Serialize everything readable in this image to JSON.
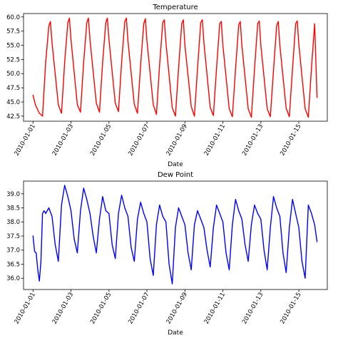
{
  "chart_data": [
    {
      "type": "line",
      "title": "Temperature",
      "xlabel": "Date",
      "ylabel": "",
      "xlim": [
        "2009-12-31T12:00",
        "2010-01-16T12:00"
      ],
      "ylim": [
        41.6,
        60.6
      ],
      "yticks": [
        42.5,
        45.0,
        47.5,
        50.0,
        52.5,
        55.0,
        57.5,
        60.0
      ],
      "ytick_labels": [
        "42.5",
        "45.0",
        "47.5",
        "50.0",
        "52.5",
        "55.0",
        "57.5",
        "60.0"
      ],
      "xtick_labels": [
        "2010-01-01",
        "2010-01-03",
        "2010-01-05",
        "2010-01-07",
        "2010-01-09",
        "2010-01-11",
        "2010-01-13",
        "2010-01-15"
      ],
      "grid": false,
      "series": [
        {
          "color": "#ff0000",
          "x": [
            "2010-01-01T00:00",
            "2010-01-01T03:00",
            "2010-01-01T08:00",
            "2010-01-01T12:00",
            "2010-01-01T16:00",
            "2010-01-01T20:00",
            "2010-01-01T22:00",
            "2010-01-02T00:00",
            "2010-01-02T08:00",
            "2010-01-02T12:00",
            "2010-01-02T16:00",
            "2010-01-02T20:00",
            "2010-01-02T22:00",
            "2010-01-03T00:00",
            "2010-01-03T08:00",
            "2010-01-03T12:00",
            "2010-01-03T16:00",
            "2010-01-03T20:00",
            "2010-01-03T22:00",
            "2010-01-04T00:00",
            "2010-01-04T08:00",
            "2010-01-04T12:00",
            "2010-01-04T16:00",
            "2010-01-04T20:00",
            "2010-01-04T22:00",
            "2010-01-05T00:00",
            "2010-01-05T08:00",
            "2010-01-05T12:00",
            "2010-01-05T16:00",
            "2010-01-05T20:00",
            "2010-01-05T22:00",
            "2010-01-06T00:00",
            "2010-01-06T08:00",
            "2010-01-06T12:00",
            "2010-01-06T16:00",
            "2010-01-06T20:00",
            "2010-01-06T22:00",
            "2010-01-07T00:00",
            "2010-01-07T08:00",
            "2010-01-07T12:00",
            "2010-01-07T16:00",
            "2010-01-07T20:00",
            "2010-01-07T22:00",
            "2010-01-08T00:00",
            "2010-01-08T08:00",
            "2010-01-08T12:00",
            "2010-01-08T16:00",
            "2010-01-08T20:00",
            "2010-01-08T22:00",
            "2010-01-09T00:00",
            "2010-01-09T08:00",
            "2010-01-09T12:00",
            "2010-01-09T16:00",
            "2010-01-09T20:00",
            "2010-01-09T22:00",
            "2010-01-10T00:00",
            "2010-01-10T08:00",
            "2010-01-10T12:00",
            "2010-01-10T16:00",
            "2010-01-10T20:00",
            "2010-01-10T22:00",
            "2010-01-11T00:00",
            "2010-01-11T08:00",
            "2010-01-11T12:00",
            "2010-01-11T16:00",
            "2010-01-11T20:00",
            "2010-01-11T22:00",
            "2010-01-12T00:00",
            "2010-01-12T08:00",
            "2010-01-12T12:00",
            "2010-01-12T16:00",
            "2010-01-12T20:00",
            "2010-01-12T22:00",
            "2010-01-13T00:00",
            "2010-01-13T08:00",
            "2010-01-13T12:00",
            "2010-01-13T16:00",
            "2010-01-13T20:00",
            "2010-01-13T22:00",
            "2010-01-14T00:00",
            "2010-01-14T08:00",
            "2010-01-14T12:00",
            "2010-01-14T16:00",
            "2010-01-14T20:00",
            "2010-01-14T22:00",
            "2010-01-15T00:00",
            "2010-01-15T08:00",
            "2010-01-15T12:00",
            "2010-01-15T16:00",
            "2010-01-15T20:00",
            "2010-01-15T23:00"
          ],
          "y": [
            46.2,
            44.5,
            43.0,
            42.5,
            52.0,
            58.4,
            59.2,
            55.5,
            44.5,
            43.0,
            52.0,
            59.0,
            59.8,
            56.0,
            44.5,
            43.2,
            52.0,
            59.0,
            59.8,
            56.0,
            44.8,
            43.2,
            52.0,
            59.0,
            59.8,
            56.0,
            44.8,
            43.3,
            52.0,
            59.2,
            59.8,
            55.8,
            44.6,
            43.0,
            51.5,
            58.8,
            59.7,
            55.8,
            44.5,
            42.8,
            51.5,
            59.0,
            59.5,
            55.5,
            44.0,
            42.5,
            51.0,
            58.8,
            59.5,
            55.0,
            44.2,
            42.5,
            51.0,
            59.0,
            59.5,
            55.5,
            44.0,
            42.6,
            51.0,
            58.8,
            59.2,
            55.0,
            43.8,
            42.4,
            50.8,
            58.6,
            59.2,
            55.0,
            43.8,
            42.3,
            50.8,
            58.8,
            59.3,
            55.0,
            43.8,
            42.4,
            50.6,
            58.5,
            59.2,
            55.0,
            43.9,
            42.4,
            50.8,
            58.8,
            59.3,
            55.2,
            43.8,
            42.3,
            51.0,
            58.8,
            45.8
          ]
        }
      ]
    },
    {
      "type": "line",
      "title": "Dew Point",
      "xlabel": "Date",
      "ylabel": "",
      "xlim": [
        "2009-12-31T12:00",
        "2010-01-16T12:00"
      ],
      "ylim": [
        35.6,
        39.45
      ],
      "yticks": [
        36.0,
        36.5,
        37.0,
        37.5,
        38.0,
        38.5,
        39.0
      ],
      "ytick_labels": [
        "36.0",
        "36.5",
        "37.0",
        "37.5",
        "38.0",
        "38.5",
        "39.0"
      ],
      "xtick_labels": [
        "2010-01-01",
        "2010-01-03",
        "2010-01-05",
        "2010-01-07",
        "2010-01-09",
        "2010-01-11",
        "2010-01-13",
        "2010-01-15"
      ],
      "grid": false,
      "series": [
        {
          "color": "#0000ff",
          "x": [
            "2010-01-01T00:00",
            "2010-01-01T02:00",
            "2010-01-01T04:00",
            "2010-01-01T06:00",
            "2010-01-01T08:00",
            "2010-01-01T10:00",
            "2010-01-01T12:00",
            "2010-01-01T14:00",
            "2010-01-01T16:00",
            "2010-01-01T20:00",
            "2010-01-02T00:00",
            "2010-01-02T04:00",
            "2010-01-02T08:00",
            "2010-01-02T12:00",
            "2010-01-02T16:00",
            "2010-01-02T20:00",
            "2010-01-03T00:00",
            "2010-01-03T04:00",
            "2010-01-03T08:00",
            "2010-01-03T12:00",
            "2010-01-03T16:00",
            "2010-01-03T20:00",
            "2010-01-04T00:00",
            "2010-01-04T04:00",
            "2010-01-04T08:00",
            "2010-01-04T12:00",
            "2010-01-04T16:00",
            "2010-01-04T20:00",
            "2010-01-05T00:00",
            "2010-01-05T04:00",
            "2010-01-05T08:00",
            "2010-01-05T12:00",
            "2010-01-05T16:00",
            "2010-01-05T20:00",
            "2010-01-06T00:00",
            "2010-01-06T04:00",
            "2010-01-06T08:00",
            "2010-01-06T12:00",
            "2010-01-06T16:00",
            "2010-01-06T20:00",
            "2010-01-07T00:00",
            "2010-01-07T04:00",
            "2010-01-07T08:00",
            "2010-01-07T12:00",
            "2010-01-07T16:00",
            "2010-01-07T20:00",
            "2010-01-08T00:00",
            "2010-01-08T04:00",
            "2010-01-08T08:00",
            "2010-01-08T12:00",
            "2010-01-08T16:00",
            "2010-01-08T20:00",
            "2010-01-09T00:00",
            "2010-01-09T04:00",
            "2010-01-09T08:00",
            "2010-01-09T12:00",
            "2010-01-09T16:00",
            "2010-01-09T20:00",
            "2010-01-10T00:00",
            "2010-01-10T04:00",
            "2010-01-10T08:00",
            "2010-01-10T12:00",
            "2010-01-10T16:00",
            "2010-01-10T20:00",
            "2010-01-11T00:00",
            "2010-01-11T04:00",
            "2010-01-11T08:00",
            "2010-01-11T12:00",
            "2010-01-11T16:00",
            "2010-01-11T20:00",
            "2010-01-12T00:00",
            "2010-01-12T04:00",
            "2010-01-12T08:00",
            "2010-01-12T12:00",
            "2010-01-12T16:00",
            "2010-01-12T20:00",
            "2010-01-13T00:00",
            "2010-01-13T04:00",
            "2010-01-13T08:00",
            "2010-01-13T12:00",
            "2010-01-13T16:00",
            "2010-01-13T20:00",
            "2010-01-14T00:00",
            "2010-01-14T04:00",
            "2010-01-14T08:00",
            "2010-01-14T12:00",
            "2010-01-14T16:00",
            "2010-01-14T20:00",
            "2010-01-15T00:00",
            "2010-01-15T04:00",
            "2010-01-15T08:00",
            "2010-01-15T12:00",
            "2010-01-15T16:00",
            "2010-01-15T20:00",
            "2010-01-15T23:00"
          ],
          "y": [
            37.5,
            36.95,
            36.9,
            36.3,
            35.9,
            36.6,
            38.3,
            38.4,
            38.3,
            38.5,
            38.2,
            37.2,
            36.6,
            38.6,
            39.3,
            38.9,
            38.4,
            37.4,
            36.9,
            38.4,
            39.2,
            38.8,
            38.3,
            37.5,
            36.9,
            38.1,
            38.9,
            38.4,
            38.3,
            37.2,
            36.7,
            38.3,
            38.95,
            38.5,
            38.2,
            37.1,
            36.6,
            38.1,
            38.7,
            38.3,
            38.0,
            36.7,
            36.1,
            37.9,
            38.6,
            38.2,
            38.0,
            36.5,
            35.8,
            37.8,
            38.5,
            38.2,
            37.9,
            36.9,
            36.3,
            37.9,
            38.4,
            38.1,
            37.8,
            37.0,
            36.4,
            37.8,
            38.6,
            38.3,
            38.0,
            36.9,
            36.3,
            37.9,
            38.8,
            38.4,
            38.1,
            37.2,
            36.6,
            37.9,
            38.6,
            38.3,
            38.1,
            37.0,
            36.3,
            37.8,
            38.9,
            38.5,
            38.2,
            36.9,
            36.2,
            37.8,
            38.8,
            38.3,
            37.8,
            36.6,
            36.0,
            38.6,
            38.3,
            37.9,
            37.3
          ]
        }
      ]
    }
  ]
}
